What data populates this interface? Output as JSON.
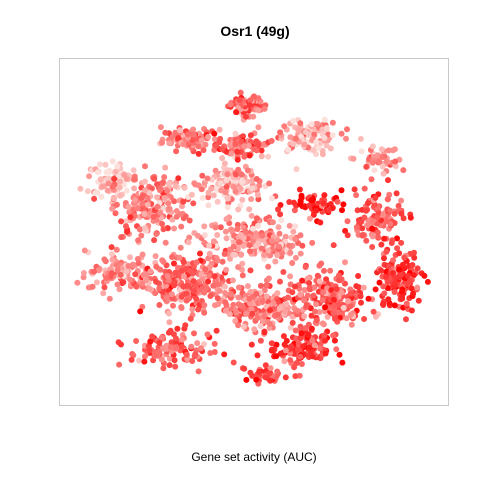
{
  "chart_data": {
    "type": "scatter",
    "title": "Osr1 (49g)",
    "xlabel": "Gene set activity (AUC)",
    "ylabel": "",
    "grid": false,
    "legend": "none",
    "axes_visible": false,
    "xlim": [
      0,
      100
    ],
    "ylim": [
      0,
      100
    ],
    "color_scale": {
      "low": "#fce0dc",
      "high": "#ff0000",
      "meaning": "AUC"
    },
    "clusters": [
      {
        "x": 48,
        "y": 88,
        "sx": 2.5,
        "sy": 1.6,
        "n": 70,
        "auc": 0.5
      },
      {
        "x": 33,
        "y": 78,
        "sx": 3.8,
        "sy": 1.6,
        "n": 90,
        "auc": 0.45
      },
      {
        "x": 47,
        "y": 76,
        "sx": 3.5,
        "sy": 1.6,
        "n": 80,
        "auc": 0.55
      },
      {
        "x": 64,
        "y": 79,
        "sx": 4.5,
        "sy": 2.5,
        "n": 110,
        "auc": 0.25
      },
      {
        "x": 83,
        "y": 72,
        "sx": 3.0,
        "sy": 2.0,
        "n": 50,
        "auc": 0.3
      },
      {
        "x": 12,
        "y": 66,
        "sx": 3.5,
        "sy": 2.5,
        "n": 80,
        "auc": 0.12
      },
      {
        "x": 22,
        "y": 58,
        "sx": 5.0,
        "sy": 5.0,
        "n": 200,
        "auc": 0.4
      },
      {
        "x": 44,
        "y": 64,
        "sx": 4.5,
        "sy": 3.0,
        "n": 120,
        "auc": 0.25
      },
      {
        "x": 67,
        "y": 58,
        "sx": 4.0,
        "sy": 2.0,
        "n": 60,
        "auc": 0.85
      },
      {
        "x": 83,
        "y": 54,
        "sx": 3.5,
        "sy": 4.0,
        "n": 110,
        "auc": 0.6
      },
      {
        "x": 50,
        "y": 47,
        "sx": 7.5,
        "sy": 3.5,
        "n": 200,
        "auc": 0.35
      },
      {
        "x": 14,
        "y": 38,
        "sx": 4.5,
        "sy": 3.0,
        "n": 100,
        "auc": 0.4
      },
      {
        "x": 32,
        "y": 34,
        "sx": 6.0,
        "sy": 4.0,
        "n": 240,
        "auc": 0.5
      },
      {
        "x": 52,
        "y": 27,
        "sx": 5.0,
        "sy": 3.5,
        "n": 180,
        "auc": 0.45
      },
      {
        "x": 70,
        "y": 30,
        "sx": 5.5,
        "sy": 4.0,
        "n": 200,
        "auc": 0.55
      },
      {
        "x": 89,
        "y": 35,
        "sx": 3.0,
        "sy": 4.5,
        "n": 140,
        "auc": 0.75
      },
      {
        "x": 27,
        "y": 15,
        "sx": 5.5,
        "sy": 2.5,
        "n": 120,
        "auc": 0.55
      },
      {
        "x": 63,
        "y": 15,
        "sx": 4.5,
        "sy": 3.0,
        "n": 120,
        "auc": 0.75
      },
      {
        "x": 53,
        "y": 7,
        "sx": 2.5,
        "sy": 1.5,
        "n": 40,
        "auc": 0.65
      }
    ]
  }
}
